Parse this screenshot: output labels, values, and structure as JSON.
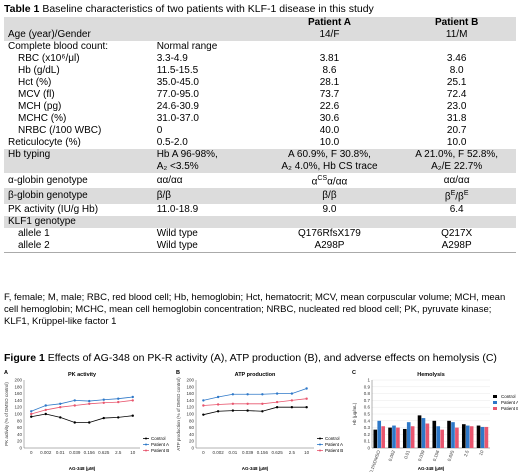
{
  "table_caption": {
    "label": "Table 1",
    "text": " Baseline characteristics of two patients with KLF-1 disease in this study"
  },
  "table": {
    "header": [
      "",
      "",
      "Patient A",
      "Patient B"
    ],
    "rows": [
      {
        "cells": [
          "Age (year)/Gender",
          "",
          "14/F",
          "11/M"
        ],
        "style": "shade"
      },
      {
        "cells": [
          "Complete blood count:",
          "Normal range",
          "",
          ""
        ],
        "style": "plain"
      },
      {
        "cells": [
          "RBC (x10⁶/μl)",
          "3.3-4.9",
          "3.81",
          "3.46"
        ],
        "style": "ind"
      },
      {
        "cells": [
          "Hb (g/dL)",
          "11.5-15.5",
          "8.6",
          "8.0"
        ],
        "style": "ind"
      },
      {
        "cells": [
          "Hct (%)",
          "35.0-45.0",
          "28.1",
          "25.1"
        ],
        "style": "ind"
      },
      {
        "cells": [
          "MCV (fl)",
          "77.0-95.0",
          "73.7",
          "72.4"
        ],
        "style": "ind"
      },
      {
        "cells": [
          "MCH (pg)",
          "24.6-30.9",
          "22.6",
          "23.0"
        ],
        "style": "ind"
      },
      {
        "cells": [
          "MCHC (%)",
          "31.0-37.0",
          "30.6",
          "31.8"
        ],
        "style": "ind"
      },
      {
        "cells": [
          "NRBC (/100 WBC)",
          "0",
          "40.0",
          "20.7"
        ],
        "style": "ind"
      },
      {
        "cells": [
          "Reticulocyte (%)",
          "0.5-2.0",
          "10.0",
          "10.0"
        ],
        "style": "plain"
      },
      {
        "cells": [
          "Hb typing",
          "Hb A 96-98%,",
          "A 60.9%, F 30.8%,",
          "A 21.0%, F 52.8%,"
        ],
        "style": "shade"
      },
      {
        "cells": [
          "",
          "A₂ <3.5%",
          "A₂ 4.0%, Hb CS trace",
          "A₂/E 22.7%"
        ],
        "style": "shade"
      },
      {
        "cells": [
          "α-globin genotype",
          "αα/αα",
          "α^CSα/αα",
          "αα/αα"
        ],
        "style": "plain"
      },
      {
        "cells": [
          "β-globin genotype",
          "β/β",
          "β/β",
          "β^E/β^E"
        ],
        "style": "shade"
      },
      {
        "cells": [
          "PK activity (IU/g Hb)",
          "11.0-18.9",
          "9.0",
          "6.4"
        ],
        "style": "plain"
      },
      {
        "cells": [
          "KLF1 genotype",
          "",
          "",
          ""
        ],
        "style": "shade"
      },
      {
        "cells": [
          "allele 1",
          "Wild type",
          "Q176RfsX179",
          "Q217X"
        ],
        "style": "ind"
      },
      {
        "cells": [
          "allele 2",
          "Wild type",
          "A298P",
          "A298P"
        ],
        "style": "ind-line"
      }
    ]
  },
  "footnote": "F, female; M, male; RBC, red blood cell; Hb, hemoglobin; Hct, hematocrit; MCV, mean corpuscular volume; MCH, mean cell hemoglobin; MCHC, mean cell hemoglobin concentration; NRBC, nucleated red blood cell; PK, pyruvate kinase; KLF1, Krüppel-like factor 1",
  "figure_caption": {
    "label": "Figure 1",
    "text": " Effects of AG-348 on PK-R activity (A), ATP production (B), and adverse effects on hemolysis (C)"
  },
  "colors": {
    "control": "#000000",
    "patient_a": "#2e78c8",
    "patient_b": "#e8566e"
  },
  "chart_data": [
    {
      "type": "line",
      "panel": "A",
      "title": "PK activity",
      "xlabel": "AG-348 (μM)",
      "ylabel": "PK activity (% of DMSO control)",
      "categories": [
        "0",
        "0.002",
        "0.01",
        "0.039",
        "0.156",
        "0.625",
        "2.5",
        "10"
      ],
      "ylim": [
        0,
        200
      ],
      "yticks": [
        0,
        20,
        40,
        60,
        80,
        100,
        120,
        140,
        160,
        180,
        200
      ],
      "series": [
        {
          "name": "Control",
          "color": "#000000",
          "values": [
            92,
            100,
            90,
            75,
            75,
            88,
            90,
            95
          ]
        },
        {
          "name": "Patient A",
          "color": "#2e78c8",
          "values": [
            108,
            125,
            130,
            140,
            138,
            142,
            145,
            150
          ]
        },
        {
          "name": "Patient B",
          "color": "#e8566e",
          "values": [
            100,
            112,
            120,
            125,
            130,
            133,
            135,
            140
          ]
        }
      ]
    },
    {
      "type": "line",
      "panel": "B",
      "title": "ATP production",
      "xlabel": "AG-348 (μM)",
      "ylabel": "ATP production (% of DMSO control)",
      "categories": [
        "0",
        "0.002",
        "0.01",
        "0.039",
        "0.156",
        "0.625",
        "2.5",
        "10"
      ],
      "ylim": [
        0,
        200
      ],
      "yticks": [
        0,
        20,
        40,
        60,
        80,
        100,
        120,
        140,
        160,
        180,
        200
      ],
      "series": [
        {
          "name": "Control",
          "color": "#000000",
          "values": [
            98,
            108,
            110,
            110,
            108,
            120,
            120,
            120
          ]
        },
        {
          "name": "Patient A",
          "color": "#2e78c8",
          "values": [
            140,
            150,
            158,
            158,
            158,
            160,
            160,
            175
          ]
        },
        {
          "name": "Patient B",
          "color": "#e8566e",
          "values": [
            125,
            128,
            130,
            130,
            130,
            135,
            140,
            145
          ]
        }
      ]
    },
    {
      "type": "bar",
      "panel": "C",
      "title": "Hemolysis",
      "xlabel": "AG-348 (μM)",
      "ylabel": "Hb (μg/mL)",
      "categories": [
        "0.1%DMSO",
        "0.002",
        "0.01",
        "0.039",
        "0.156",
        "0.625",
        "2.5",
        "10"
      ],
      "ylim": [
        0,
        1
      ],
      "yticks": [
        0,
        0.1,
        0.2,
        0.3,
        0.4,
        0.5,
        0.6,
        0.7,
        0.8,
        0.9,
        1
      ],
      "series": [
        {
          "name": "Control",
          "color": "#000000",
          "values": [
            0.27,
            0.3,
            0.28,
            0.48,
            0.4,
            0.4,
            0.35,
            0.33
          ]
        },
        {
          "name": "Patient A",
          "color": "#2e78c8",
          "values": [
            0.4,
            0.33,
            0.38,
            0.44,
            0.32,
            0.38,
            0.33,
            0.31
          ]
        },
        {
          "name": "Patient B",
          "color": "#e8566e",
          "values": [
            0.32,
            0.3,
            0.32,
            0.36,
            0.27,
            0.3,
            0.32,
            0.31
          ]
        }
      ]
    }
  ]
}
